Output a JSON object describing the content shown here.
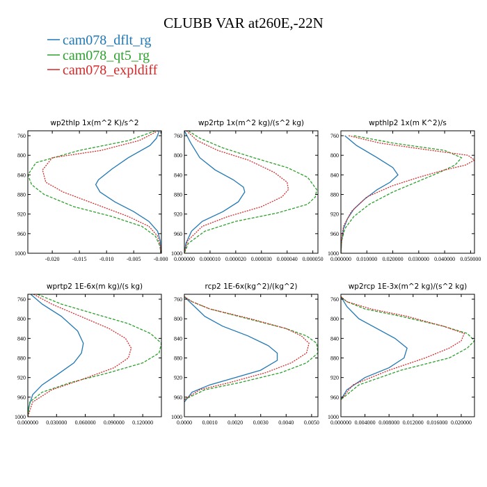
{
  "figure": {
    "title": "CLUBB VAR at260E,-22N",
    "legend": [
      {
        "name": "cam078_dflt_rg",
        "color": "#1f77b4",
        "dash": "solid"
      },
      {
        "name": "cam078_qt5_rg",
        "color": "#2ca02c",
        "dash": "dashed"
      },
      {
        "name": "cam078_expldiff",
        "color": "#d62728",
        "dash": "dotted"
      }
    ]
  },
  "chart_data": [
    {
      "type": "line",
      "title": "wp2thlp   1x(m^2 K)/s^2",
      "xlim": [
        -0.0245,
        0.0001
      ],
      "ylim": [
        1000,
        750
      ],
      "xticks": [
        -0.02,
        -0.015,
        -0.01,
        -0.005,
        0.0
      ],
      "xtick_labels": [
        "-0.020",
        "-0.015",
        "-0.010",
        "-0.005",
        "-0.000"
      ],
      "yticks": [
        760,
        800,
        840,
        880,
        920,
        960,
        1000
      ],
      "ytick_labels": [
        "760",
        "800",
        "840",
        "880",
        "920",
        "960",
        "1000"
      ],
      "series": [
        {
          "name": "cam078_dflt_rg",
          "x": [
            -0.0003,
            -0.0008,
            -0.002,
            -0.006,
            -0.009,
            -0.0115,
            -0.012,
            -0.0112,
            -0.0085,
            -0.005,
            -0.0022,
            -0.0006,
            -0.0001,
            0.0
          ],
          "y": [
            750,
            765,
            780,
            805,
            828,
            850,
            860,
            875,
            895,
            915,
            935,
            955,
            975,
            1000
          ]
        },
        {
          "name": "cam078_qt5_rg",
          "x": [
            -0.001,
            -0.006,
            -0.015,
            -0.023,
            -0.0245,
            -0.0238,
            -0.0215,
            -0.016,
            -0.009,
            -0.0035,
            -0.001,
            -0.0002,
            0.0
          ],
          "y": [
            750,
            770,
            790,
            815,
            840,
            860,
            880,
            905,
            925,
            945,
            965,
            985,
            1000
          ]
        },
        {
          "name": "cam078_expldiff",
          "x": [
            -0.0005,
            -0.004,
            -0.011,
            -0.02,
            -0.0218,
            -0.0212,
            -0.018,
            -0.012,
            -0.006,
            -0.0022,
            -0.0006,
            -0.0001,
            0.0
          ],
          "y": [
            750,
            770,
            790,
            805,
            830,
            855,
            875,
            900,
            925,
            945,
            965,
            985,
            1000
          ]
        }
      ]
    },
    {
      "type": "line",
      "title": "wp2rtp   1x(m^2 kg)/(s^2 kg)",
      "xlim": [
        0.0,
        5.2e-05
      ],
      "ylim": [
        1000,
        750
      ],
      "xticks": [
        0.0,
        1e-05,
        2e-05,
        3e-05,
        4e-05,
        5e-05
      ],
      "xtick_labels": [
        "0.000000",
        "0.000010",
        "0.000020",
        "0.000030",
        "0.000040",
        "0.000050"
      ],
      "yticks": [
        760,
        800,
        840,
        880,
        920,
        960,
        1000
      ],
      "ytick_labels": [
        "760",
        "800",
        "840",
        "880",
        "920",
        "960",
        "1000"
      ],
      "series": [
        {
          "name": "cam078_dflt_rg",
          "x": [
            0.0,
            2.5e-06,
            6e-06,
            1.2e-05,
            1.9e-05,
            2.3e-05,
            2.35e-05,
            2.1e-05,
            1.5e-05,
            7e-06,
            2.8e-06,
            6e-07,
            0.0
          ],
          "y": [
            750,
            775,
            805,
            830,
            850,
            865,
            875,
            895,
            915,
            935,
            955,
            980,
            1000
          ]
        },
        {
          "name": "cam078_qt5_rg",
          "x": [
            1.5e-06,
            6e-06,
            1.5e-05,
            2.7e-05,
            4e-05,
            4.8e-05,
            5.15e-05,
            5.1e-05,
            4.8e-05,
            3.6e-05,
            2e-05,
            8e-06,
            1.5e-06,
            0.0
          ],
          "y": [
            750,
            765,
            785,
            805,
            825,
            845,
            870,
            885,
            900,
            918,
            935,
            955,
            980,
            1000
          ]
        },
        {
          "name": "cam078_expldiff",
          "x": [
            8e-07,
            5e-06,
            1.3e-05,
            2.5e-05,
            3.5e-05,
            4e-05,
            4.05e-05,
            3.8e-05,
            3e-05,
            1.7e-05,
            7e-06,
            1.2e-06,
            0.0
          ],
          "y": [
            750,
            770,
            790,
            810,
            835,
            855,
            870,
            885,
            905,
            925,
            945,
            975,
            1000
          ]
        }
      ]
    },
    {
      "type": "line",
      "title": "wpthlp2   1x(m K^2)/s",
      "xlim": [
        0.0,
        0.0515
      ],
      "ylim": [
        1000,
        750
      ],
      "xticks": [
        0.0,
        0.01,
        0.02,
        0.03,
        0.04,
        0.05
      ],
      "xtick_labels": [
        "0.000000",
        "0.010000",
        "0.020000",
        "0.030000",
        "0.040000",
        "0.050000"
      ],
      "yticks": [
        760,
        800,
        840,
        880,
        920,
        960,
        1000
      ],
      "ytick_labels": [
        "760",
        "800",
        "840",
        "880",
        "920",
        "960",
        "1000"
      ],
      "series": [
        {
          "name": "cam078_dflt_rg",
          "x": [
            0.0015,
            0.006,
            0.014,
            0.02,
            0.022,
            0.019,
            0.014,
            0.009,
            0.005,
            0.0025,
            0.001,
            0.0003,
            0.0
          ],
          "y": [
            760,
            780,
            805,
            825,
            840,
            855,
            870,
            890,
            910,
            930,
            950,
            975,
            1000
          ]
        },
        {
          "name": "cam078_qt5_rg",
          "x": [
            0.005,
            0.02,
            0.04,
            0.0465,
            0.044,
            0.038,
            0.029,
            0.02,
            0.011,
            0.005,
            0.0015,
            0.0003,
            0.0
          ],
          "y": [
            760,
            775,
            790,
            805,
            820,
            835,
            855,
            875,
            900,
            925,
            950,
            975,
            1000
          ]
        },
        {
          "name": "cam078_expldiff",
          "x": [
            0.003,
            0.015,
            0.035,
            0.049,
            0.0515,
            0.048,
            0.04,
            0.03,
            0.02,
            0.01,
            0.004,
            0.001,
            0.0002,
            0.0
          ],
          "y": [
            760,
            775,
            790,
            800,
            810,
            820,
            830,
            845,
            862,
            885,
            915,
            945,
            975,
            1000
          ]
        }
      ]
    },
    {
      "type": "line",
      "title": "wprtp2   1E-6x(m kg)/(s kg)",
      "xlim": [
        0.0,
        0.1395
      ],
      "ylim": [
        1000,
        750
      ],
      "xticks": [
        0.0,
        0.03,
        0.06,
        0.09,
        0.12
      ],
      "xtick_labels": [
        "0.000000",
        "0.030000",
        "0.060000",
        "0.090000",
        "0.120000"
      ],
      "yticks": [
        760,
        800,
        840,
        880,
        920,
        960,
        1000
      ],
      "ytick_labels": [
        "760",
        "800",
        "840",
        "880",
        "920",
        "960",
        "1000"
      ],
      "series": [
        {
          "name": "cam078_dflt_rg",
          "x": [
            0.003,
            0.015,
            0.035,
            0.052,
            0.058,
            0.056,
            0.048,
            0.03,
            0.015,
            0.005,
            0.001,
            0.0
          ],
          "y": [
            750,
            770,
            795,
            825,
            850,
            870,
            890,
            915,
            935,
            955,
            980,
            1000
          ]
        },
        {
          "name": "cam078_qt5_rg",
          "x": [
            0.01,
            0.035,
            0.07,
            0.105,
            0.128,
            0.1395,
            0.137,
            0.12,
            0.085,
            0.045,
            0.015,
            0.002,
            0.0
          ],
          "y": [
            750,
            770,
            790,
            810,
            830,
            850,
            870,
            890,
            910,
            930,
            950,
            970,
            1000
          ]
        },
        {
          "name": "cam078_expldiff",
          "x": [
            0.006,
            0.025,
            0.055,
            0.085,
            0.102,
            0.108,
            0.105,
            0.09,
            0.055,
            0.025,
            0.005,
            0.0
          ],
          "y": [
            750,
            770,
            795,
            820,
            840,
            860,
            880,
            900,
            925,
            945,
            970,
            1000
          ]
        }
      ]
    },
    {
      "type": "line",
      "title": "rcp2   1E-6x(kg^2)/(kg^2)",
      "xlim": [
        0.0,
        0.00525
      ],
      "ylim": [
        1000,
        750
      ],
      "xticks": [
        0.0,
        0.001,
        0.002,
        0.003,
        0.004,
        0.005
      ],
      "xtick_labels": [
        "0.0000",
        "0.0010",
        "0.0020",
        "0.0030",
        "0.0040",
        "0.0050"
      ],
      "yticks": [
        760,
        800,
        840,
        880,
        920,
        960,
        1000
      ],
      "ytick_labels": [
        "760",
        "800",
        "840",
        "880",
        "920",
        "960",
        "1000"
      ],
      "series": [
        {
          "name": "cam078_dflt_rg",
          "x": [
            0.0,
            0.0003,
            0.0008,
            0.0015,
            0.0025,
            0.0033,
            0.00365,
            0.00365,
            0.003,
            0.002,
            0.001,
            0.0003,
            0.0
          ],
          "y": [
            755,
            770,
            795,
            815,
            835,
            855,
            870,
            885,
            905,
            920,
            935,
            950,
            970
          ]
        },
        {
          "name": "cam078_qt5_rg",
          "x": [
            0.0,
            0.0003,
            0.001,
            0.0025,
            0.004,
            0.0048,
            0.0052,
            0.00525,
            0.0048,
            0.0038,
            0.0022,
            0.0008,
            0.0
          ],
          "y": [
            755,
            765,
            780,
            800,
            820,
            835,
            850,
            870,
            890,
            910,
            930,
            945,
            965
          ]
        },
        {
          "name": "cam078_expldiff",
          "x": [
            0.0,
            0.0003,
            0.001,
            0.0026,
            0.004,
            0.0046,
            0.0049,
            0.0048,
            0.0042,
            0.0032,
            0.0018,
            0.0006,
            0.0
          ],
          "y": [
            755,
            765,
            780,
            800,
            820,
            835,
            850,
            870,
            890,
            910,
            930,
            945,
            965
          ]
        }
      ]
    },
    {
      "type": "line",
      "title": "wp2rcp   1E-3x(m^2 kg)/(s^2 kg)",
      "xlim": [
        0.0,
        0.0222
      ],
      "ylim": [
        1000,
        750
      ],
      "xticks": [
        0.0,
        0.004,
        0.008,
        0.012,
        0.016,
        0.02
      ],
      "xtick_labels": [
        "0.000000",
        "0.004000",
        "0.008000",
        "0.012000",
        "0.016000",
        "0.020000"
      ],
      "yticks": [
        760,
        800,
        840,
        880,
        920,
        960,
        1000
      ],
      "ytick_labels": [
        "760",
        "800",
        "840",
        "880",
        "920",
        "960",
        "1000"
      ],
      "series": [
        {
          "name": "cam078_dflt_rg",
          "x": [
            0.0,
            0.001,
            0.003,
            0.006,
            0.009,
            0.011,
            0.0105,
            0.008,
            0.004,
            0.001,
            0.0
          ],
          "y": [
            755,
            775,
            800,
            820,
            840,
            860,
            880,
            900,
            920,
            945,
            965
          ]
        },
        {
          "name": "cam078_qt5_rg",
          "x": [
            0.0,
            0.001,
            0.004,
            0.01,
            0.017,
            0.021,
            0.0222,
            0.021,
            0.018,
            0.01,
            0.003,
            0.0
          ],
          "y": [
            755,
            765,
            780,
            795,
            815,
            830,
            845,
            860,
            880,
            905,
            935,
            965
          ]
        },
        {
          "name": "cam078_expldiff",
          "x": [
            0.0,
            0.001,
            0.005,
            0.011,
            0.017,
            0.0205,
            0.02,
            0.018,
            0.014,
            0.008,
            0.002,
            0.0
          ],
          "y": [
            755,
            765,
            780,
            795,
            815,
            830,
            845,
            860,
            880,
            905,
            935,
            965
          ]
        }
      ]
    }
  ]
}
